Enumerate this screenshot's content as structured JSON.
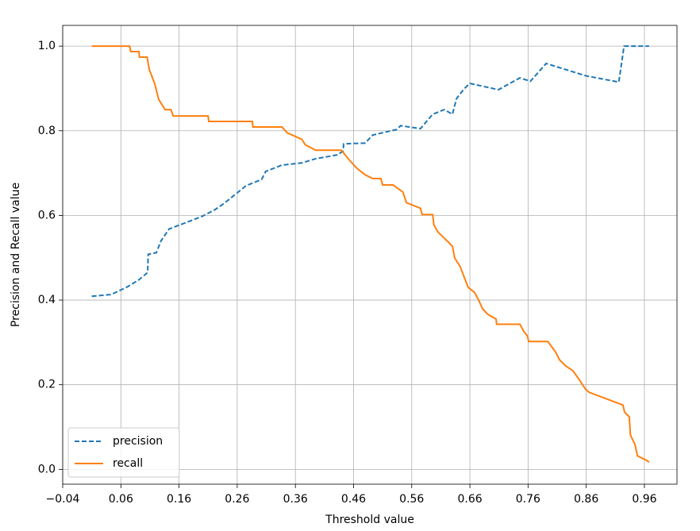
{
  "chart_data": {
    "type": "line",
    "xlabel": "Threshold value",
    "ylabel": "Precision and Recall value",
    "xlim": [
      -0.04,
      1.016
    ],
    "ylim": [
      -0.035,
      1.049
    ],
    "xticks": [
      {
        "value": -0.04,
        "label": "−0.04"
      },
      0.06,
      0.16,
      0.26,
      0.36,
      0.46,
      0.56,
      0.66,
      0.76,
      0.86,
      0.96
    ],
    "yticks": [
      {
        "value": 0,
        "label": "0.0"
      },
      0.2,
      0.4,
      0.6,
      0.8,
      {
        "value": 1,
        "label": "1.0"
      }
    ],
    "grid": true,
    "legend": "lower left",
    "series": [
      {
        "name": "precision",
        "color": "#1f77b4",
        "linestyle": "dashed",
        "x": [
          0.01,
          0.043,
          0.071,
          0.091,
          0.106,
          0.107,
          0.121,
          0.129,
          0.143,
          0.166,
          0.2,
          0.221,
          0.234,
          0.248,
          0.275,
          0.302,
          0.309,
          0.337,
          0.371,
          0.395,
          0.432,
          0.442,
          0.443,
          0.48,
          0.493,
          0.534,
          0.541,
          0.575,
          0.596,
          0.616,
          0.63,
          0.637,
          0.65,
          0.66,
          0.709,
          0.746,
          0.764,
          0.791,
          0.859,
          0.916,
          0.925,
          0.968
        ],
        "values": [
          0.409,
          0.413,
          0.431,
          0.448,
          0.465,
          0.508,
          0.512,
          0.54,
          0.568,
          0.58,
          0.598,
          0.613,
          0.625,
          0.64,
          0.67,
          0.685,
          0.704,
          0.719,
          0.724,
          0.734,
          0.743,
          0.752,
          0.769,
          0.771,
          0.79,
          0.803,
          0.812,
          0.805,
          0.839,
          0.85,
          0.839,
          0.876,
          0.899,
          0.912,
          0.897,
          0.925,
          0.917,
          0.959,
          0.93,
          0.915,
          1.0,
          1.0
        ]
      },
      {
        "name": "recall",
        "color": "#ff7f0e",
        "linestyle": "solid",
        "x": [
          0.01,
          0.075,
          0.077,
          0.091,
          0.092,
          0.105,
          0.109,
          0.118,
          0.125,
          0.136,
          0.146,
          0.15,
          0.21,
          0.211,
          0.286,
          0.287,
          0.337,
          0.346,
          0.371,
          0.377,
          0.395,
          0.439,
          0.452,
          0.466,
          0.48,
          0.493,
          0.507,
          0.51,
          0.528,
          0.545,
          0.551,
          0.575,
          0.578,
          0.596,
          0.598,
          0.605,
          0.616,
          0.623,
          0.63,
          0.634,
          0.643,
          0.657,
          0.668,
          0.675,
          0.682,
          0.691,
          0.705,
          0.706,
          0.746,
          0.753,
          0.759,
          0.761,
          0.794,
          0.807,
          0.814,
          0.825,
          0.837,
          0.848,
          0.859,
          0.865,
          0.923,
          0.926,
          0.934,
          0.936,
          0.944,
          0.948,
          0.964,
          0.968
        ],
        "values": [
          1.0,
          1.0,
          0.987,
          0.987,
          0.974,
          0.974,
          0.944,
          0.912,
          0.874,
          0.85,
          0.85,
          0.835,
          0.835,
          0.822,
          0.822,
          0.809,
          0.809,
          0.795,
          0.78,
          0.767,
          0.754,
          0.754,
          0.732,
          0.711,
          0.696,
          0.687,
          0.687,
          0.672,
          0.672,
          0.655,
          0.63,
          0.617,
          0.602,
          0.602,
          0.578,
          0.561,
          0.546,
          0.537,
          0.527,
          0.499,
          0.48,
          0.43,
          0.418,
          0.4,
          0.379,
          0.366,
          0.355,
          0.343,
          0.343,
          0.325,
          0.315,
          0.302,
          0.302,
          0.278,
          0.259,
          0.244,
          0.233,
          0.212,
          0.189,
          0.182,
          0.152,
          0.135,
          0.124,
          0.081,
          0.058,
          0.032,
          0.021,
          0.017
        ]
      }
    ]
  }
}
